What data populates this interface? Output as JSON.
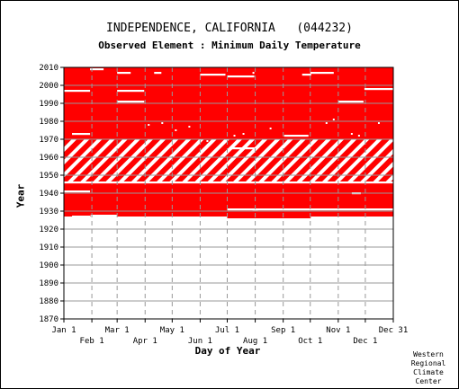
{
  "chart_data": {
    "type": "heatmap",
    "title": "INDEPENDENCE, CALIFORNIA   (044232)",
    "subtitle": "Observed Element : Minimum Daily Temperature",
    "xlabel": "Day of Year",
    "ylabel": "Year",
    "ylim": [
      1870,
      2010
    ],
    "xlim": [
      1,
      366
    ],
    "y_ticks": [
      1870,
      1880,
      1890,
      1900,
      1910,
      1920,
      1930,
      1940,
      1950,
      1960,
      1970,
      1980,
      1990,
      2000,
      2010
    ],
    "x_ticks_upper": [
      {
        "label": "Jan 1",
        "day": 1
      },
      {
        "label": "Mar 1",
        "day": 60
      },
      {
        "label": "May 1",
        "day": 121
      },
      {
        "label": "Jul 1",
        "day": 182
      },
      {
        "label": "Sep 1",
        "day": 244
      },
      {
        "label": "Nov 1",
        "day": 305
      },
      {
        "label": "Dec 31",
        "day": 366
      }
    ],
    "x_ticks_lower": [
      {
        "label": "Feb 1",
        "day": 32
      },
      {
        "label": "Apr 1",
        "day": 91
      },
      {
        "label": "Jun 1",
        "day": 152
      },
      {
        "label": "Aug 1",
        "day": 213
      },
      {
        "label": "Oct 1",
        "day": 274
      },
      {
        "label": "Dec 1",
        "day": 335
      }
    ],
    "grid": true,
    "colors": {
      "observed": "#ff0000",
      "missing": "#ffffff",
      "grid": "#999999"
    },
    "record_start_by_day": [
      {
        "from": 1,
        "to": 30,
        "year": 1927
      },
      {
        "from": 30,
        "to": 60,
        "year": 1928
      },
      {
        "from": 60,
        "to": 182,
        "year": 1927
      },
      {
        "from": 182,
        "to": 274,
        "year": 1926
      },
      {
        "from": 274,
        "to": 366,
        "year": 1927
      }
    ],
    "record_end_year": 2010,
    "striped_years": [
      1946,
      1970
    ],
    "missing_segments": [
      {
        "year": 1927,
        "from": 10,
        "to": 30
      },
      {
        "year": 1931,
        "from": 182,
        "to": 366
      },
      {
        "year": 1931,
        "from": 210,
        "to": 216
      },
      {
        "year": 1941,
        "from": 1,
        "to": 30
      },
      {
        "year": 1940,
        "from": 320,
        "to": 330
      },
      {
        "year": 1946,
        "from": 1,
        "to": 366
      },
      {
        "year": 1965,
        "from": 186,
        "to": 212
      },
      {
        "year": 1973,
        "from": 10,
        "to": 30
      },
      {
        "year": 1972,
        "from": 245,
        "to": 272
      },
      {
        "year": 1991,
        "from": 60,
        "to": 90
      },
      {
        "year": 1991,
        "from": 305,
        "to": 333
      },
      {
        "year": 1997,
        "from": 1,
        "to": 30
      },
      {
        "year": 1997,
        "from": 60,
        "to": 90
      },
      {
        "year": 1998,
        "from": 334,
        "to": 366
      },
      {
        "year": 2005,
        "from": 182,
        "to": 212
      },
      {
        "year": 2006,
        "from": 152,
        "to": 180
      },
      {
        "year": 2006,
        "from": 265,
        "to": 275
      },
      {
        "year": 2007,
        "from": 60,
        "to": 75
      },
      {
        "year": 2007,
        "from": 101,
        "to": 109
      },
      {
        "year": 2007,
        "from": 210,
        "to": 212
      },
      {
        "year": 2007,
        "from": 274,
        "to": 300
      },
      {
        "year": 2009,
        "from": 30,
        "to": 45
      }
    ],
    "missing_dots": [
      {
        "year": 1978,
        "day": 95
      },
      {
        "year": 1979,
        "day": 110
      },
      {
        "year": 1977,
        "day": 140
      },
      {
        "year": 1975,
        "day": 125
      },
      {
        "year": 1969,
        "day": 160
      },
      {
        "year": 1972,
        "day": 190
      },
      {
        "year": 1973,
        "day": 200
      },
      {
        "year": 1976,
        "day": 230
      },
      {
        "year": 1981,
        "day": 300
      },
      {
        "year": 1979,
        "day": 292
      },
      {
        "year": 1973,
        "day": 320
      },
      {
        "year": 1972,
        "day": 328
      },
      {
        "year": 1962,
        "day": 320
      },
      {
        "year": 1957,
        "day": 325
      },
      {
        "year": 1979,
        "day": 350
      }
    ]
  },
  "credit": [
    "Western",
    "Regional",
    "Climate",
    "Center"
  ]
}
